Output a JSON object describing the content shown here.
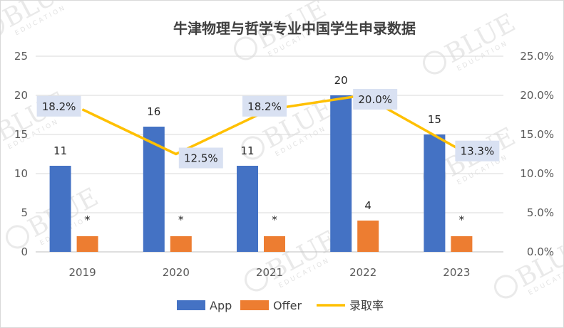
{
  "chart_data": {
    "type": "bar",
    "title": "牛津物理与哲学专业中国学生申录数据",
    "categories": [
      "2019",
      "2020",
      "2021",
      "2022",
      "2023"
    ],
    "series": [
      {
        "name": "App",
        "type": "bar",
        "axis": "left",
        "color": "#4472C4",
        "values": [
          11,
          16,
          11,
          20,
          15
        ],
        "labels": [
          "11",
          "16",
          "11",
          "20",
          "15"
        ]
      },
      {
        "name": "Offer",
        "type": "bar",
        "axis": "left",
        "color": "#ED7D31",
        "values": [
          2,
          2,
          2,
          4,
          2
        ],
        "labels": [
          "*",
          "*",
          "*",
          "4",
          "*"
        ]
      },
      {
        "name": "录取率",
        "type": "line",
        "axis": "right",
        "color": "#FFC000",
        "values": [
          18.2,
          12.5,
          18.2,
          20.0,
          13.3
        ],
        "labels": [
          "18.2%",
          "12.5%",
          "18.2%",
          "20.0%",
          "13.3%"
        ]
      }
    ],
    "y_left": {
      "min": 0,
      "max": 25,
      "ticks": [
        "0",
        "5",
        "10",
        "15",
        "20",
        "25"
      ]
    },
    "y_right": {
      "min": 0,
      "max": 25,
      "ticks": [
        "0.0%",
        "5.0%",
        "10.0%",
        "15.0%",
        "20.0%",
        "25.0%"
      ]
    },
    "grid": true,
    "legend": "bottom",
    "watermark": "BLUE EDUCATION"
  }
}
